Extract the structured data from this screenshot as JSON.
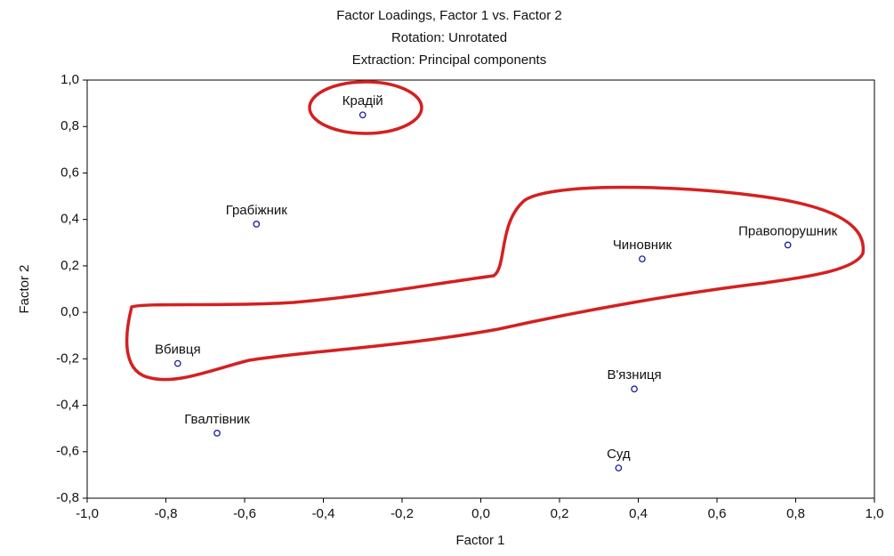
{
  "chart_data": {
    "type": "scatter",
    "title": "Factor Loadings, Factor 1 vs. Factor 2",
    "subtitle": [
      "Rotation: Unrotated",
      "Extraction: Principal components"
    ],
    "xlabel": "Factor 1",
    "ylabel": "Factor 2",
    "point_labels": [
      "Крадій",
      "Грабіжник",
      "Чиновник",
      "Правопорушник",
      "Вбивця",
      "В'язниця",
      "Гвалтівник",
      "Суд"
    ],
    "x": [
      -0.3,
      -0.57,
      0.41,
      0.78,
      -0.77,
      0.39,
      -0.67,
      0.35
    ],
    "values": [
      0.85,
      0.38,
      0.23,
      0.29,
      -0.22,
      -0.33,
      -0.52,
      -0.67
    ],
    "color": "#1a1aa0",
    "xlim": [
      -1.0,
      1.0
    ],
    "ylim": [
      -0.8,
      1.0
    ],
    "xticks": [
      {
        "value": -1.0,
        "label": "-1,0"
      },
      {
        "value": -0.8,
        "label": "-0,8"
      },
      {
        "value": -0.6,
        "label": "-0,6"
      },
      {
        "value": -0.4,
        "label": "-0,4"
      },
      {
        "value": -0.2,
        "label": "-0,2"
      },
      {
        "value": 0.0,
        "label": "0,0"
      },
      {
        "value": 0.2,
        "label": "0,2"
      },
      {
        "value": 0.4,
        "label": "0,4"
      },
      {
        "value": 0.6,
        "label": "0,6"
      },
      {
        "value": 0.8,
        "label": "0,8"
      },
      {
        "value": 1.0,
        "label": "1,0"
      }
    ],
    "yticks": [
      {
        "value": -0.8,
        "label": "-0,8"
      },
      {
        "value": -0.6,
        "label": "-0,6"
      },
      {
        "value": -0.4,
        "label": "-0,4"
      },
      {
        "value": -0.2,
        "label": "-0,2"
      },
      {
        "value": 0.0,
        "label": "0,0"
      },
      {
        "value": 0.2,
        "label": "0,2"
      },
      {
        "value": 0.4,
        "label": "0,4"
      },
      {
        "value": 0.6,
        "label": "0,6"
      },
      {
        "value": 0.8,
        "label": "0,8"
      },
      {
        "value": 1.0,
        "label": "1,0"
      }
    ]
  }
}
